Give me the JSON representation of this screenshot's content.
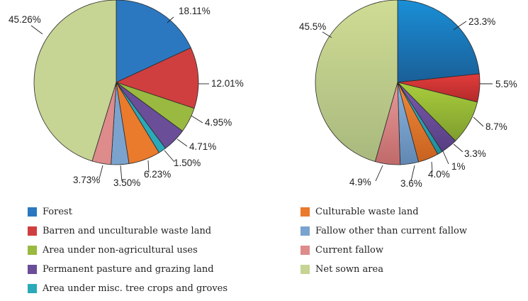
{
  "chart_data": [
    {
      "type": "pie",
      "slices": [
        {
          "category": "Forest",
          "value": 18.11,
          "label": "18.11%"
        },
        {
          "category": "Barren and unculturable waste land",
          "value": 12.01,
          "label": "12.01%"
        },
        {
          "category": "Area under non-agricultural uses",
          "value": 4.95,
          "label": "4.95%"
        },
        {
          "category": "Permanent pasture and grazing land",
          "value": 4.71,
          "label": "4.71%"
        },
        {
          "category": "Area under misc. tree crops and groves",
          "value": 1.5,
          "label": "1.50%"
        },
        {
          "category": "Culturable waste land",
          "value": 6.23,
          "label": "6.23%"
        },
        {
          "category": "Fallow other than current fallow",
          "value": 3.5,
          "label": "3.50%"
        },
        {
          "category": "Current fallow",
          "value": 3.73,
          "label": "3.73%"
        },
        {
          "category": "Net sown area",
          "value": 45.26,
          "label": "45.26%"
        }
      ]
    },
    {
      "type": "pie",
      "slices": [
        {
          "category": "Forest",
          "value": 23.3,
          "label": "23.3%"
        },
        {
          "category": "Barren and unculturable waste land",
          "value": 5.5,
          "label": "5.5%"
        },
        {
          "category": "Area under non-agricultural uses",
          "value": 8.7,
          "label": "8.7%"
        },
        {
          "category": "Permanent pasture and grazing land",
          "value": 3.3,
          "label": "3.3%"
        },
        {
          "category": "Area under misc. tree crops and groves",
          "value": 1,
          "label": "1%"
        },
        {
          "category": "Culturable waste land",
          "value": 4.0,
          "label": "4.0%"
        },
        {
          "category": "Fallow other than current fallow",
          "value": 3.6,
          "label": "3.6%"
        },
        {
          "category": "Current fallow",
          "value": 4.9,
          "label": "4.9%"
        },
        {
          "category": "Net sown area",
          "value": 45.5,
          "label": "45.5%"
        }
      ]
    }
  ],
  "legend": [
    {
      "label": "Forest",
      "color": "#2b78c0"
    },
    {
      "label": "Barren and unculturable waste land",
      "color": "#cf3f3f"
    },
    {
      "label": "Area under non-agricultural uses",
      "color": "#9ab940"
    },
    {
      "label": "Permanent pasture and grazing land",
      "color": "#6a4e98"
    },
    {
      "label": "Area under misc. tree crops and groves",
      "color": "#2aaab8"
    },
    {
      "label": "Culturable waste land",
      "color": "#ea7a2c"
    },
    {
      "label": "Fallow other than current fallow",
      "color": "#7ba3cd"
    },
    {
      "label": "Current fallow",
      "color": "#de8b8b"
    },
    {
      "label": "Net sown area",
      "color": "#c6d494"
    }
  ]
}
